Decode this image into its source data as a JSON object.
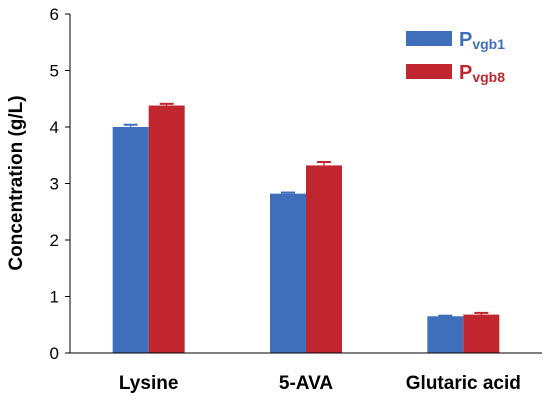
{
  "chart_data": {
    "type": "bar",
    "title": "",
    "xlabel": "",
    "ylabel": "Concentration (g/L)",
    "ylim": [
      0,
      6
    ],
    "yticks": [
      0,
      1,
      2,
      3,
      4,
      5,
      6
    ],
    "categories": [
      "Lysine",
      "5-AVA",
      "Glutaric acid"
    ],
    "series": [
      {
        "name": "P",
        "subscript": "vgb1",
        "color": "#3f6fba",
        "values": [
          4.0,
          2.82,
          0.65
        ],
        "errors": [
          0.04,
          0.02,
          0.01
        ]
      },
      {
        "name": "P",
        "subscript": "vgb8",
        "color": "#c0262d",
        "values": [
          4.38,
          3.32,
          0.68
        ],
        "errors": [
          0.03,
          0.06,
          0.03
        ]
      }
    ],
    "grid": false,
    "legend_position": "top-right"
  }
}
